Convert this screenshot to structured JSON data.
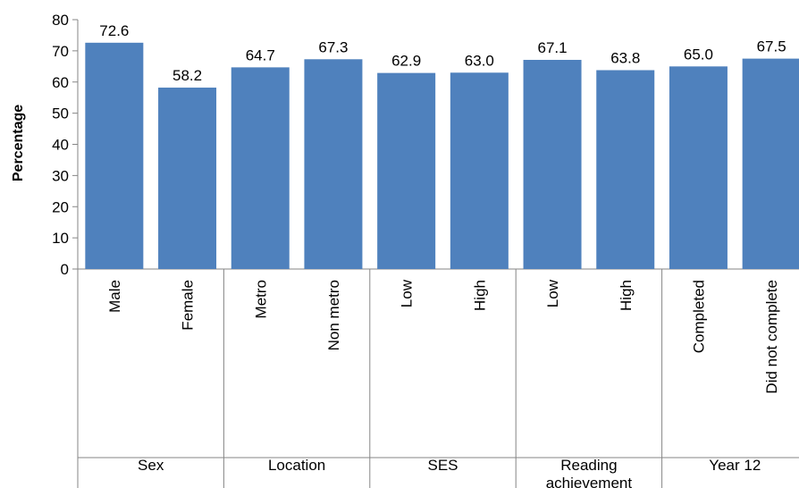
{
  "chart_data": {
    "type": "bar",
    "ylabel": "Percentage",
    "ylim": [
      0,
      80
    ],
    "yticks": [
      "0",
      "10",
      "20",
      "30",
      "40",
      "50",
      "60",
      "70",
      "80"
    ],
    "grid": false,
    "bar_color": "#4f81bd",
    "categories": [
      "Male",
      "Female",
      "Metro",
      "Non metro",
      "Low",
      "High",
      "Low",
      "High",
      "Completed",
      "Did not complete"
    ],
    "values": [
      72.6,
      58.2,
      64.7,
      67.3,
      62.9,
      63.0,
      67.1,
      63.8,
      65.0,
      67.5
    ],
    "value_labels": [
      "72.6",
      "58.2",
      "64.7",
      "67.3",
      "62.9",
      "63.0",
      "67.1",
      "63.8",
      "65.0",
      "67.5"
    ],
    "groups": [
      {
        "name": "Sex",
        "lines": [
          "Sex"
        ],
        "count": 2
      },
      {
        "name": "Location",
        "lines": [
          "Location"
        ],
        "count": 2
      },
      {
        "name": "SES",
        "lines": [
          "SES"
        ],
        "count": 2
      },
      {
        "name": "Reading achievement",
        "lines": [
          "Reading",
          "achievement"
        ],
        "count": 2
      },
      {
        "name": "Year 12",
        "lines": [
          "Year 12"
        ],
        "count": 2
      }
    ]
  }
}
